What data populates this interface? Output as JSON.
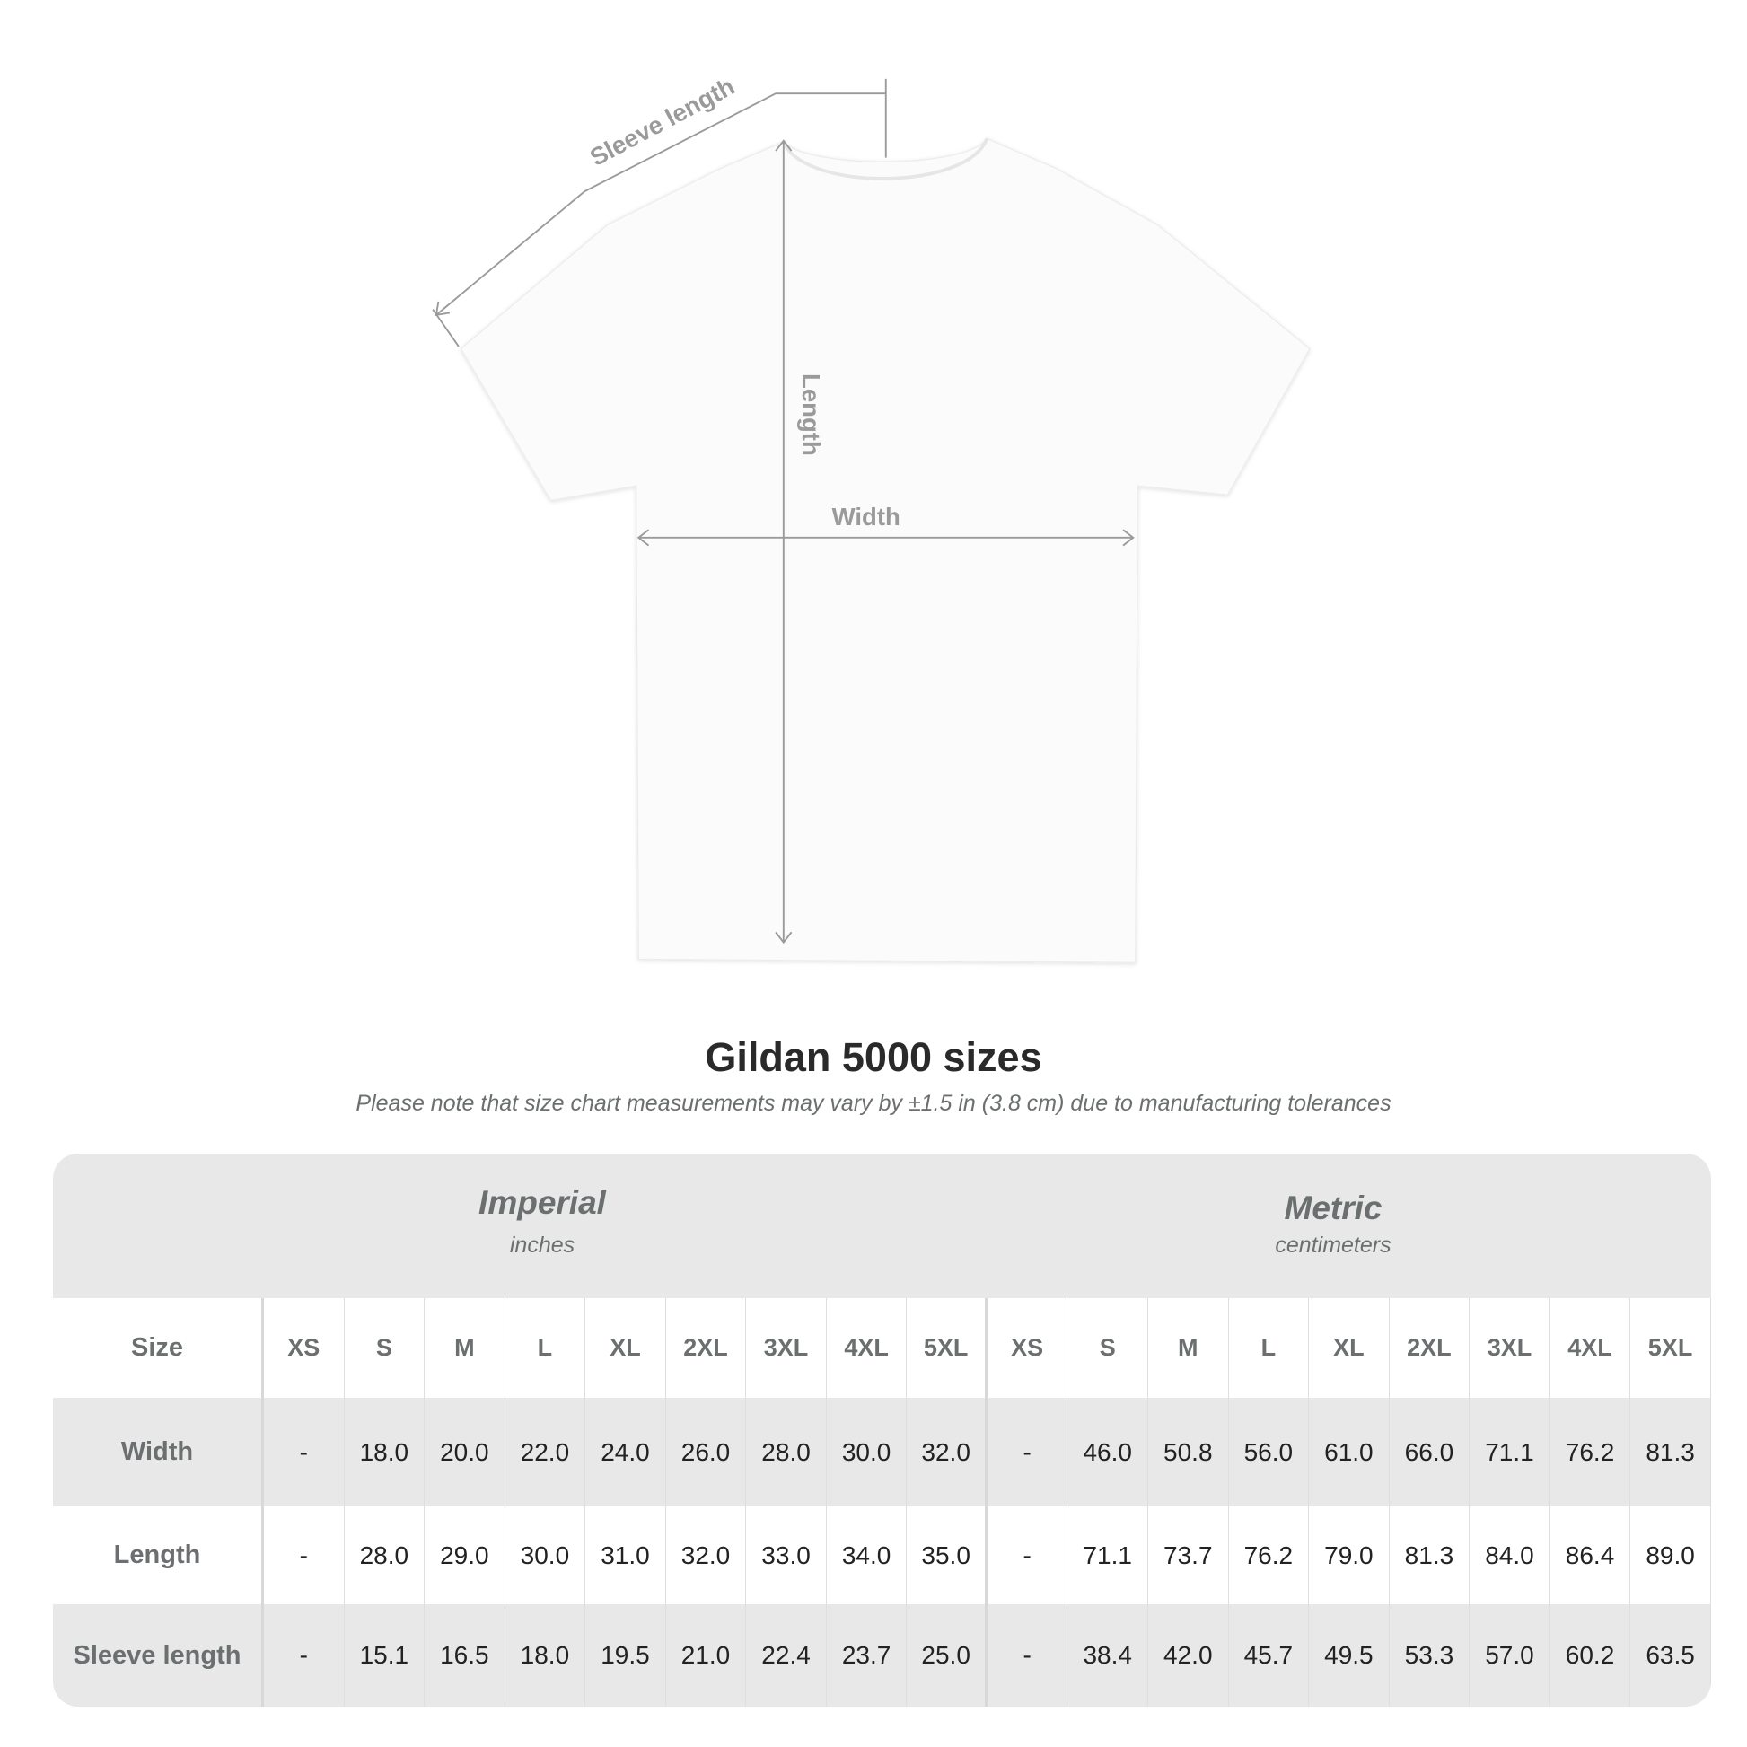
{
  "diagram": {
    "labels": {
      "sleeve": "Sleeve length",
      "length": "Length",
      "width": "Width"
    }
  },
  "title": "Gildan 5000 sizes",
  "note": "Please note that size chart measurements may vary by ±1.5 in (3.8 cm) due to manufacturing tolerances",
  "table": {
    "imperial": {
      "title": "Imperial",
      "unit": "inches"
    },
    "metric": {
      "title": "Metric",
      "unit": "centimeters"
    },
    "size_label": "Size",
    "sizes": [
      "XS",
      "S",
      "M",
      "L",
      "XL",
      "2XL",
      "3XL",
      "4XL",
      "5XL"
    ],
    "rows": [
      {
        "label": "Width",
        "imperial": [
          "-",
          "18.0",
          "20.0",
          "22.0",
          "24.0",
          "26.0",
          "28.0",
          "30.0",
          "32.0"
        ],
        "metric": [
          "-",
          "46.0",
          "50.8",
          "56.0",
          "61.0",
          "66.0",
          "71.1",
          "76.2",
          "81.3"
        ]
      },
      {
        "label": "Length",
        "imperial": [
          "-",
          "28.0",
          "29.0",
          "30.0",
          "31.0",
          "32.0",
          "33.0",
          "34.0",
          "35.0"
        ],
        "metric": [
          "-",
          "71.1",
          "73.7",
          "76.2",
          "79.0",
          "81.3",
          "84.0",
          "86.4",
          "89.0"
        ]
      },
      {
        "label": "Sleeve length",
        "imperial": [
          "-",
          "15.1",
          "16.5",
          "18.0",
          "19.5",
          "21.0",
          "22.4",
          "23.7",
          "25.0"
        ],
        "metric": [
          "-",
          "38.4",
          "42.0",
          "45.7",
          "49.5",
          "53.3",
          "57.0",
          "60.2",
          "63.5"
        ]
      }
    ],
    "colors": {
      "band": "#e8e8e8",
      "label": "#6b6f70",
      "value": "#222222"
    }
  }
}
